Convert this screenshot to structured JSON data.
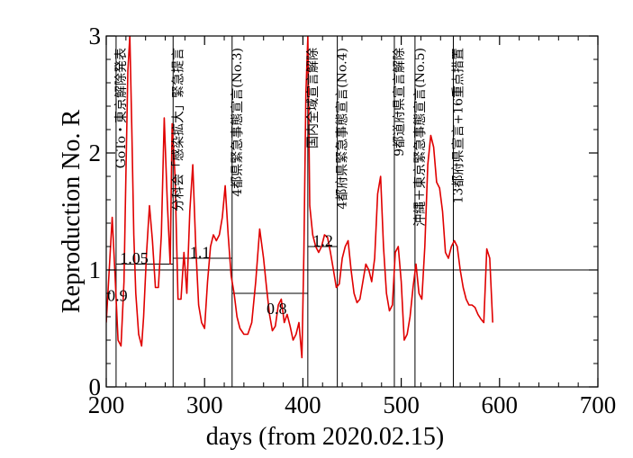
{
  "chart_data": {
    "type": "line",
    "xlabel": "days   (from 2020.02.15)",
    "ylabel": "Reproduction No.  R",
    "xlim": [
      200,
      700
    ],
    "ylim": [
      0,
      3
    ],
    "x_ticks": [
      "200",
      "300",
      "400",
      "500",
      "600",
      "700"
    ],
    "y_ticks": [
      "0",
      "1",
      "2",
      "3"
    ],
    "line_color": "#e00000",
    "series": [
      {
        "x": [
          200,
          203,
          206,
          209,
          212,
          215,
          218,
          220,
          222,
          224,
          226,
          228,
          230,
          233,
          236,
          238,
          241,
          244,
          247,
          250,
          253,
          256,
          259,
          262,
          265,
          267,
          270,
          273,
          276,
          279,
          282,
          285,
          288,
          291,
          294,
          297,
          300,
          303,
          306,
          309,
          312,
          315,
          318,
          321,
          324,
          327,
          330,
          333,
          336,
          340,
          344,
          348,
          352,
          356,
          360,
          363,
          366,
          369,
          372,
          375,
          378,
          381,
          384,
          387,
          390,
          393,
          396,
          399,
          401,
          403,
          405,
          407,
          410,
          413,
          416,
          419,
          422,
          425,
          428,
          431,
          434,
          437,
          440,
          443,
          446,
          449,
          452,
          455,
          458,
          461,
          464,
          467,
          470,
          473,
          476,
          479,
          482,
          485,
          488,
          491,
          494,
          497,
          500,
          503,
          506,
          509,
          512,
          515,
          518,
          521,
          524,
          527,
          530,
          533,
          536,
          539,
          542,
          545,
          548,
          551,
          554,
          557,
          560,
          563,
          566,
          569,
          572,
          575,
          578,
          581,
          584,
          587,
          590,
          593
        ],
        "y": [
          0.55,
          1.0,
          1.45,
          0.95,
          0.4,
          0.35,
          0.9,
          1.8,
          2.7,
          3.0,
          2.2,
          1.3,
          0.8,
          0.45,
          0.35,
          0.6,
          1.15,
          1.55,
          1.25,
          0.85,
          0.85,
          1.3,
          2.3,
          1.6,
          1.05,
          2.25,
          1.8,
          0.75,
          0.75,
          1.15,
          0.8,
          1.5,
          1.9,
          1.2,
          0.7,
          0.55,
          0.5,
          0.9,
          1.2,
          1.3,
          1.25,
          1.3,
          1.45,
          1.72,
          1.3,
          0.95,
          0.8,
          0.6,
          0.5,
          0.45,
          0.45,
          0.55,
          0.9,
          1.35,
          1.1,
          0.85,
          0.62,
          0.48,
          0.52,
          0.7,
          0.75,
          0.55,
          0.62,
          0.52,
          0.4,
          0.45,
          0.55,
          0.25,
          1.15,
          2.5,
          3.0,
          1.55,
          1.3,
          1.2,
          1.15,
          1.2,
          1.3,
          1.28,
          1.15,
          1.0,
          0.85,
          0.88,
          1.1,
          1.2,
          1.25,
          1.0,
          0.8,
          0.72,
          0.75,
          0.9,
          1.05,
          1.0,
          0.9,
          1.1,
          1.65,
          1.8,
          1.2,
          0.8,
          0.65,
          0.7,
          1.15,
          1.2,
          0.9,
          0.4,
          0.45,
          0.6,
          0.85,
          1.05,
          0.8,
          0.75,
          1.2,
          1.9,
          2.15,
          2.05,
          1.75,
          1.7,
          1.5,
          1.15,
          1.1,
          1.2,
          1.25,
          1.2,
          1.0,
          0.85,
          0.75,
          0.7,
          0.7,
          0.68,
          0.62,
          0.58,
          0.55,
          1.18,
          1.1,
          0.55
        ]
      }
    ],
    "reference_lines": [
      {
        "y": 1.0,
        "x1": 200,
        "x2": 700
      }
    ],
    "period_lines": [
      {
        "y": 1.05,
        "x1": 210,
        "x2": 268,
        "label": "1.05",
        "label_x": 214,
        "label_y": 1.1
      },
      {
        "y": 1.1,
        "x1": 268,
        "x2": 328,
        "label": "1.1",
        "label_x": 285,
        "label_y": 1.15
      },
      {
        "y": 0.8,
        "x1": 328,
        "x2": 405,
        "label": "0.8",
        "label_x": 363,
        "label_y": 0.67
      },
      {
        "y": 1.2,
        "x1": 405,
        "x2": 435,
        "label": "1.2",
        "label_x": 410,
        "label_y": 1.25
      }
    ],
    "event_lines": [
      {
        "x": 210,
        "label": "GoTo・東京解除発表",
        "label_y": 2.9
      },
      {
        "x": 268,
        "label": "分科会「感染拡大」緊急提言",
        "label_y": 2.9
      },
      {
        "x": 328,
        "label": "4都県緊急事態宣言(No.3)",
        "label_y": 2.9
      },
      {
        "x": 405,
        "label": "国内全域宣言解除",
        "label_y": 2.9
      },
      {
        "x": 435,
        "label": "4都府県緊急事態宣言(No.4)",
        "label_y": 2.9
      },
      {
        "x": 493,
        "label": "9都道府県宣言解除",
        "label_y": 2.9
      },
      {
        "x": 514,
        "label": "沖縄＋東京緊急事態宣言(No.5)",
        "label_y": 2.9
      },
      {
        "x": 553,
        "label": "13都府県宣言+16重点措置",
        "label_y": 2.9
      }
    ],
    "extra_labels": [
      {
        "text": "0.9",
        "x": 201,
        "y": 0.78
      }
    ],
    "grid": false
  }
}
